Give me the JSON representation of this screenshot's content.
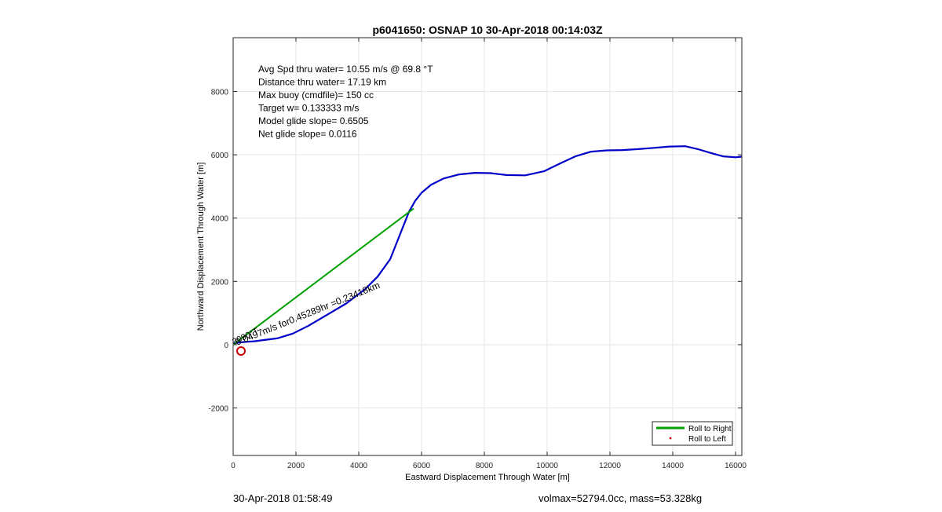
{
  "chart_data": {
    "type": "line",
    "title": "p6041650: OSNAP 10 30-Apr-2018 00:14:03Z",
    "xlabel": "Eastward Displacement Through Water [m]",
    "ylabel": "Northward Displacement Through Water [m]",
    "xlim": [
      0,
      16200
    ],
    "ylim": [
      -3500,
      9700
    ],
    "xticks": [
      0,
      2000,
      4000,
      6000,
      8000,
      10000,
      12000,
      14000,
      16000
    ],
    "yticks": [
      -2000,
      0,
      2000,
      4000,
      6000,
      8000
    ],
    "grid": true,
    "series": [
      {
        "color": "#0000c8",
        "x": [
          0,
          300,
          700,
          1000,
          1400,
          1900,
          2400,
          3000,
          3600,
          4200,
          4600,
          5000,
          5200,
          5400,
          5600,
          5800,
          6000,
          6300,
          6700,
          7200,
          7700,
          8200,
          8700,
          9300,
          9900,
          10400,
          10900,
          11400,
          11900,
          12400,
          12900,
          13400,
          13900,
          14400,
          14800,
          15200,
          15600,
          16000,
          16200
        ],
        "y": [
          50,
          80,
          110,
          150,
          200,
          350,
          600,
          950,
          1300,
          1750,
          2150,
          2700,
          3200,
          3700,
          4200,
          4550,
          4800,
          5050,
          5250,
          5380,
          5430,
          5420,
          5360,
          5350,
          5480,
          5720,
          5950,
          6100,
          6140,
          6150,
          6180,
          6220,
          6260,
          6270,
          6180,
          6060,
          5950,
          5920,
          5940
        ]
      },
      {
        "name": "Roll to Right",
        "color": "#00a000",
        "x": [
          0,
          5750
        ],
        "y": [
          0,
          4300
        ]
      }
    ],
    "markers": [
      {
        "name": "Roll to Left",
        "color": "#cc0000",
        "x": 250,
        "y": -200
      }
    ],
    "annotations": {
      "stats": [
        "Avg Spd thru water= 10.55 m/s @  69.8 °T",
        "Distance thru water= 17.19 km",
        "Max buoy (cmdfile)= 150 cc",
        "Target w= 0.133333 m/s",
        "Model glide slope= 0.6505",
        "Net glide slope= 0.0116"
      ],
      "diagonal_label": "0.0497m/s for0.45289hr =0.23418km",
      "origin_label": "3090°T"
    },
    "legend": {
      "location": "bottom-right",
      "entries": [
        "Roll to Right",
        "Roll to Left"
      ]
    }
  },
  "footer": {
    "left": "30-Apr-2018 01:58:49",
    "right": "volmax=52794.0cc, mass=53.328kg"
  }
}
